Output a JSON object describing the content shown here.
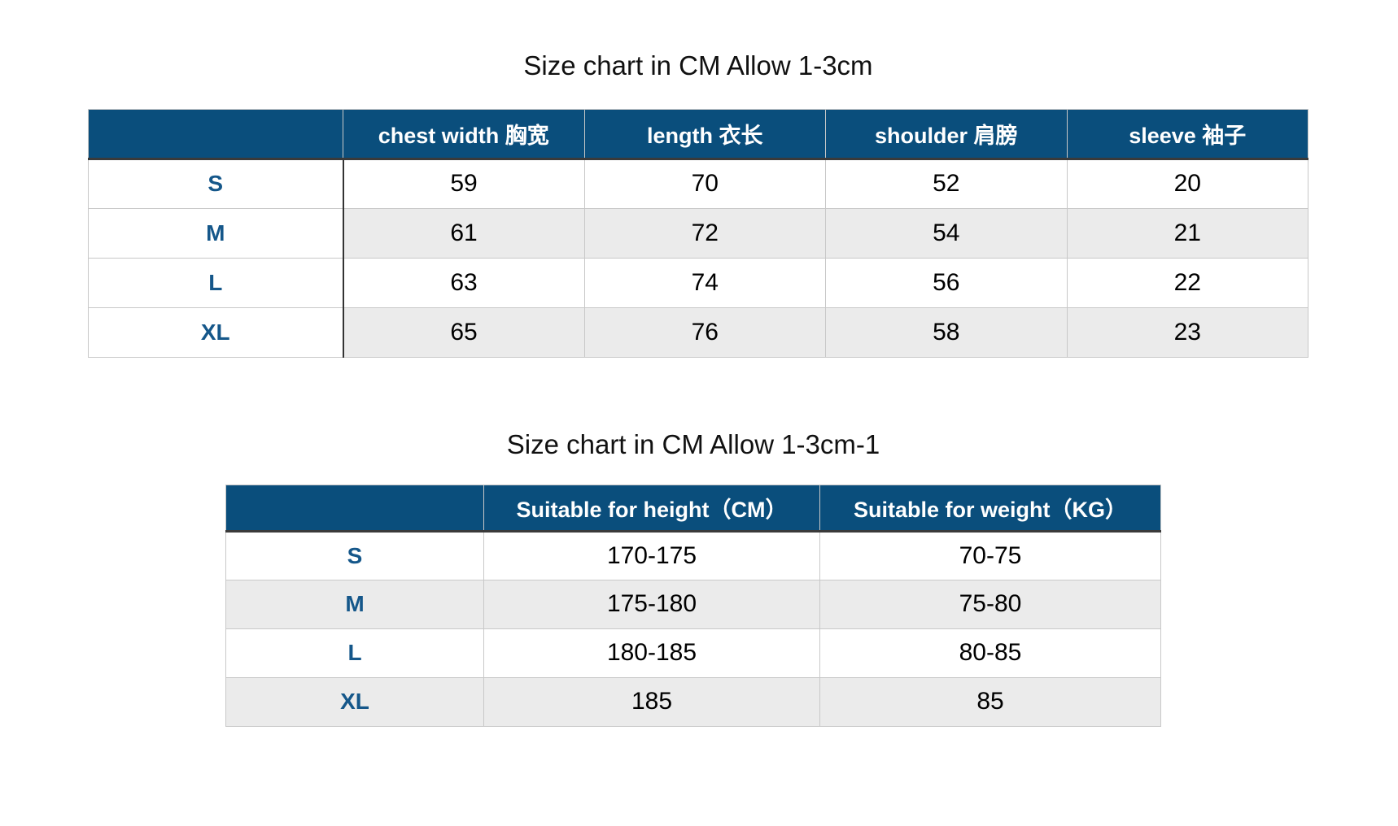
{
  "colors": {
    "header_bg": "#0a4e7c",
    "header_text": "#ffffff",
    "row_label_text": "#15578a",
    "stripe_bg": "#ebebeb",
    "border_light": "#c8c8c8",
    "border_dark": "#3a3a3a",
    "body_text": "#000000"
  },
  "chart_data": [
    {
      "type": "table",
      "title": "Size chart in CM Allow 1-3cm",
      "columns": [
        "",
        "chest width 胸宽",
        "length 衣长",
        "shoulder 肩膀",
        "sleeve 袖子"
      ],
      "rows": [
        {
          "label": "S",
          "values": [
            "59",
            "70",
            "52",
            "20"
          ]
        },
        {
          "label": "M",
          "values": [
            "61",
            "72",
            "54",
            "21"
          ]
        },
        {
          "label": "L",
          "values": [
            "63",
            "74",
            "56",
            "22"
          ]
        },
        {
          "label": "XL",
          "values": [
            "65",
            "76",
            "58",
            "23"
          ]
        }
      ]
    },
    {
      "type": "table",
      "title": "Size chart in CM Allow 1-3cm-1",
      "columns": [
        "",
        "Suitable for height（CM）",
        "Suitable for weight（KG）"
      ],
      "rows": [
        {
          "label": "S",
          "values": [
            "170-175",
            "70-75"
          ]
        },
        {
          "label": "M",
          "values": [
            "175-180",
            "75-80"
          ]
        },
        {
          "label": "L",
          "values": [
            "180-185",
            "80-85"
          ]
        },
        {
          "label": "XL",
          "values": [
            "185",
            "85"
          ]
        }
      ]
    }
  ]
}
